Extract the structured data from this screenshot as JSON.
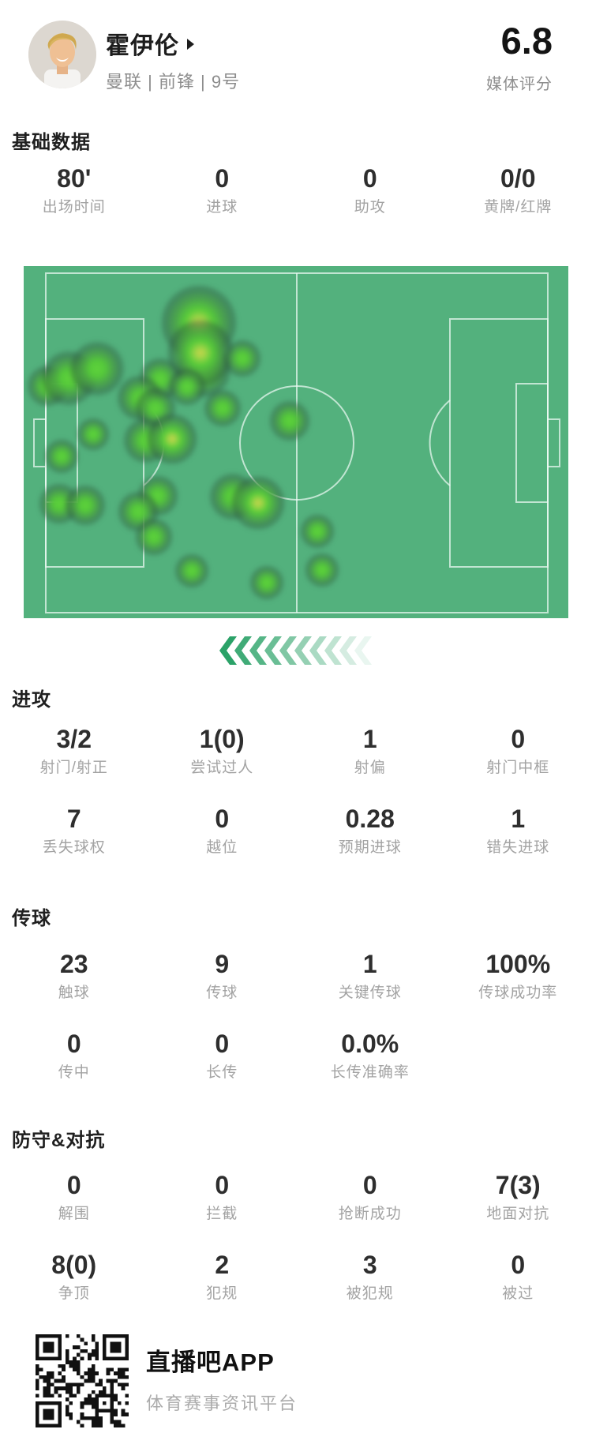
{
  "header": {
    "player_name": "霍伊伦",
    "team_info": "曼联 | 前锋 | 9号",
    "rating": "6.8",
    "rating_label": "媒体评分",
    "avatar_icon": "player-photo",
    "name_arrow_icon": "triangle-right"
  },
  "sections": {
    "basic": {
      "title": "基础数据",
      "rows": [
        [
          {
            "value": "80'",
            "label": "出场时间"
          },
          {
            "value": "0",
            "label": "进球"
          },
          {
            "value": "0",
            "label": "助攻"
          },
          {
            "value": "0/0",
            "label": "黄牌/红牌"
          }
        ]
      ]
    },
    "attack": {
      "title": "进攻",
      "rows": [
        [
          {
            "value": "3/2",
            "label": "射门/射正"
          },
          {
            "value": "1(0)",
            "label": "尝试过人"
          },
          {
            "value": "1",
            "label": "射偏"
          },
          {
            "value": "0",
            "label": "射门中框"
          }
        ],
        [
          {
            "value": "7",
            "label": "丢失球权"
          },
          {
            "value": "0",
            "label": "越位"
          },
          {
            "value": "0.28",
            "label": "预期进球"
          },
          {
            "value": "1",
            "label": "错失进球"
          }
        ]
      ]
    },
    "passing": {
      "title": "传球",
      "rows": [
        [
          {
            "value": "23",
            "label": "触球"
          },
          {
            "value": "9",
            "label": "传球"
          },
          {
            "value": "1",
            "label": "关键传球"
          },
          {
            "value": "100%",
            "label": "传球成功率"
          }
        ],
        [
          {
            "value": "0",
            "label": "传中"
          },
          {
            "value": "0",
            "label": "长传"
          },
          {
            "value": "0.0%",
            "label": "长传准确率"
          },
          {
            "value": "",
            "label": ""
          }
        ]
      ]
    },
    "defense": {
      "title": "防守&对抗",
      "rows": [
        [
          {
            "value": "0",
            "label": "解围"
          },
          {
            "value": "0",
            "label": "拦截"
          },
          {
            "value": "0",
            "label": "抢断成功"
          },
          {
            "value": "7(3)",
            "label": "地面对抗"
          }
        ],
        [
          {
            "value": "8(0)",
            "label": "争顶"
          },
          {
            "value": "2",
            "label": "犯规"
          },
          {
            "value": "3",
            "label": "被犯规"
          },
          {
            "value": "0",
            "label": "被过"
          }
        ]
      ]
    }
  },
  "heatmap": {
    "pitch_color": "#53b17d",
    "line_color": "rgba(236,250,243,0.72)",
    "blob_green": "#57cb3a",
    "blob_yellow": "#c8d44e",
    "chevron_color": "#2ba268",
    "chevron_count": 10,
    "blobs": [
      [
        228,
        132,
        22,
        "g"
      ],
      [
        222,
        72,
        30,
        "y"
      ],
      [
        224,
        110,
        26,
        "y"
      ],
      [
        277,
        117,
        15,
        "g"
      ],
      [
        30,
        152,
        16,
        "g"
      ],
      [
        57,
        142,
        22,
        "g"
      ],
      [
        93,
        130,
        22,
        "g"
      ],
      [
        173,
        143,
        17,
        "g"
      ],
      [
        207,
        153,
        15,
        "g"
      ],
      [
        147,
        167,
        18,
        "g"
      ],
      [
        167,
        180,
        16,
        "g"
      ],
      [
        252,
        180,
        15,
        "g"
      ],
      [
        88,
        213,
        13,
        "g"
      ],
      [
        48,
        241,
        14,
        "g"
      ],
      [
        155,
        221,
        18,
        "g"
      ],
      [
        188,
        219,
        20,
        "y"
      ],
      [
        337,
        196,
        16,
        "g"
      ],
      [
        45,
        301,
        16,
        "g"
      ],
      [
        78,
        303,
        16,
        "g"
      ],
      [
        170,
        291,
        16,
        "g"
      ],
      [
        145,
        311,
        16,
        "g"
      ],
      [
        165,
        343,
        15,
        "g"
      ],
      [
        265,
        292,
        19,
        "g"
      ],
      [
        297,
        300,
        21,
        "y"
      ],
      [
        213,
        386,
        14,
        "g"
      ],
      [
        308,
        401,
        14,
        "g"
      ],
      [
        372,
        336,
        14,
        "g"
      ],
      [
        378,
        385,
        14,
        "g"
      ]
    ]
  },
  "footer": {
    "app_name": "直播吧APP",
    "app_tagline": "体育赛事资讯平台",
    "qr_icon": "qr-code"
  },
  "layout_tops": {
    "basic_title": 160,
    "basic_stats": 205,
    "attack_title": 866,
    "attack_stats": 915,
    "passing_title": 1143,
    "passing_stats": 1200,
    "defense_title": 1424,
    "defense_stats": 1480
  }
}
